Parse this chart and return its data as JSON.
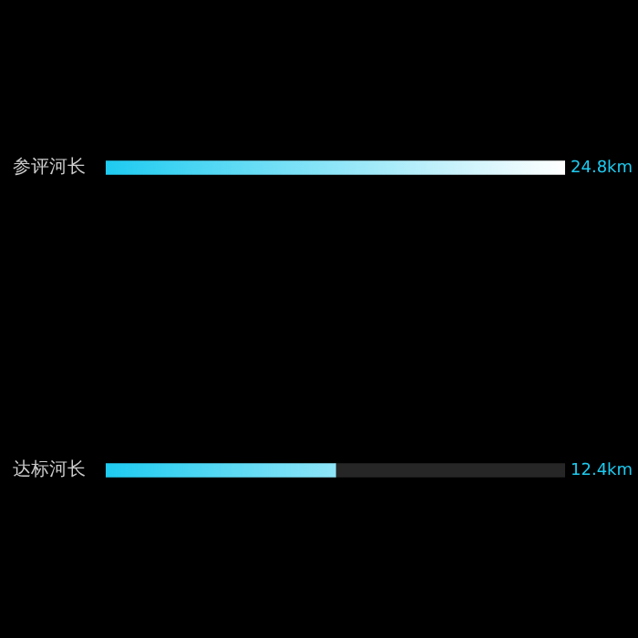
{
  "chart_data": {
    "type": "bar",
    "orientation": "horizontal",
    "stacked": true,
    "categories": [
      "参评河长",
      "达标河长"
    ],
    "series": [
      {
        "color": "#1ecbf0",
        "values": [
          24.8,
          12.4
        ],
        "value_labels": [
          "24.8km",
          "12.4km"
        ]
      },
      {
        "color": "#262626",
        "values": [
          0,
          12.4
        ]
      }
    ],
    "legend": false
  }
}
